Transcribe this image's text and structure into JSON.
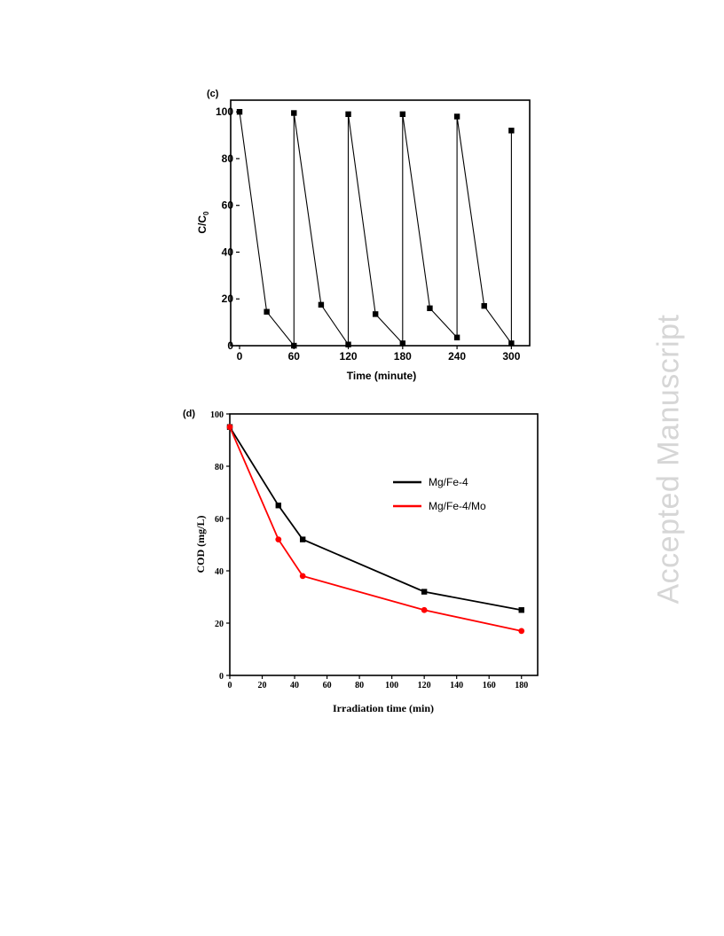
{
  "watermark": "Accepted Manuscript",
  "chart_data": [
    {
      "type": "line",
      "panel_label": "(c)",
      "xlabel": "Time (minute)",
      "ylabel": "C/C0",
      "ylabel_main": "C/C",
      "ylabel_sub": "0",
      "xlim": [
        0,
        330
      ],
      "ylim": [
        0,
        105
      ],
      "xticks": [
        0,
        60,
        120,
        180,
        240,
        300
      ],
      "yticks": [
        0,
        20,
        40,
        60,
        80,
        100
      ],
      "color": "#000000",
      "series": [
        {
          "x": [
            0,
            30,
            60,
            60,
            90,
            120,
            120,
            150,
            180,
            180,
            210,
            240,
            240,
            270,
            300,
            300
          ],
          "y": [
            100,
            14.5,
            0,
            99.5,
            17.5,
            0.5,
            99,
            13.5,
            1,
            99,
            16,
            3.5,
            98,
            17,
            1,
            92
          ]
        }
      ]
    },
    {
      "type": "line",
      "panel_label": "(d)",
      "xlabel": "Irradiation time (min)",
      "ylabel": "COD (mg/L)",
      "xlim": [
        0,
        190
      ],
      "ylim": [
        0,
        100
      ],
      "xticks": [
        0,
        20,
        40,
        60,
        80,
        100,
        120,
        140,
        160,
        180
      ],
      "yticks": [
        0,
        20,
        40,
        60,
        80,
        100
      ],
      "legend_position": "top-right",
      "series": [
        {
          "name": "Mg/Fe-4",
          "color": "#000000",
          "marker": "square",
          "x": [
            0,
            30,
            45,
            120,
            180
          ],
          "y": [
            95,
            65,
            52,
            32,
            25
          ]
        },
        {
          "name": "Mg/Fe-4/Mo",
          "color": "#ff0000",
          "marker": "circle",
          "x": [
            0,
            30,
            45,
            120,
            180
          ],
          "y": [
            95,
            52,
            38,
            25,
            17
          ]
        }
      ]
    }
  ]
}
